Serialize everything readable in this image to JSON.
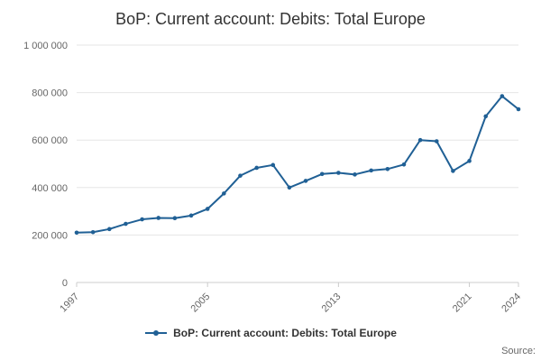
{
  "title": "BoP: Current account: Debits: Total Europe",
  "legend": {
    "label": "BoP: Current account: Debits: Total Europe"
  },
  "source": {
    "label": "Source:"
  },
  "colors": {
    "series": "#206095",
    "grid": "#e6e6e6",
    "axis": "#cccccc",
    "tick_text": "#666666",
    "title_text": "#333333"
  },
  "chart_data": {
    "type": "line",
    "title": "BoP: Current account: Debits: Total Europe",
    "xlabel": "",
    "ylabel": "",
    "x": [
      1997,
      1998,
      1999,
      2000,
      2001,
      2002,
      2003,
      2004,
      2005,
      2006,
      2007,
      2008,
      2009,
      2010,
      2011,
      2012,
      2013,
      2014,
      2015,
      2016,
      2017,
      2018,
      2019,
      2020,
      2021,
      2022,
      2023,
      2024
    ],
    "series": [
      {
        "name": "BoP: Current account: Debits: Total Europe",
        "values": [
          210000,
          212000,
          225000,
          247000,
          266000,
          272000,
          271000,
          282000,
          310000,
          375000,
          450000,
          483000,
          495000,
          400000,
          428000,
          457000,
          462000,
          455000,
          472000,
          478000,
          497000,
          600000,
          595000,
          470000,
          512000,
          700000,
          785000,
          730000
        ]
      }
    ],
    "ylim": [
      0,
      1000000
    ],
    "yticks": [
      0,
      200000,
      400000,
      600000,
      800000,
      1000000
    ],
    "ytick_labels": [
      "0",
      "200 000",
      "400 000",
      "600 000",
      "800 000",
      "1 000 000"
    ],
    "xticks": [
      1997,
      2005,
      2013,
      2021,
      2024
    ],
    "x_tick_rotation": -45,
    "grid": true,
    "legend_position": "bottom",
    "marker": "circle"
  }
}
